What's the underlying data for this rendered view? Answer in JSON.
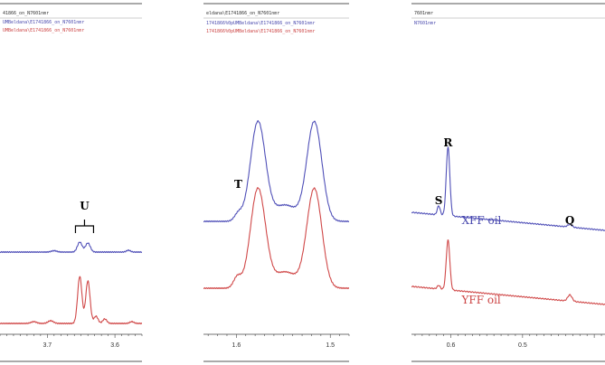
{
  "chart_data": [
    {
      "type": "line",
      "panel": "left",
      "headers": [
        "41866_on_N7601nmr",
        "UMBeldana\\E1741866_on_N7601nmr",
        "UMBeldana\\E1741866_on_N7601nmr"
      ],
      "xlim": [
        3.77,
        3.56
      ],
      "xticks": [
        {
          "value": 3.7,
          "label": "3.7"
        },
        {
          "value": 3.6,
          "label": "3.6"
        }
      ],
      "annotations": [
        {
          "text": "U",
          "x": 3.645
        }
      ],
      "series": [
        {
          "color": "#5050b8",
          "baseline": 279,
          "peaks": [
            {
              "x": 3.652,
              "h": 11,
              "w": 0.0035
            },
            {
              "x": 3.64,
              "h": 10,
              "w": 0.0035
            },
            {
              "x": 3.69,
              "h": 1.5,
              "w": 0.004
            },
            {
              "x": 3.58,
              "h": 2,
              "w": 0.003
            }
          ]
        },
        {
          "color": "#d04848",
          "baseline": 358,
          "peaks": [
            {
              "x": 3.652,
              "h": 52,
              "w": 0.0032
            },
            {
              "x": 3.64,
              "h": 47,
              "w": 0.0032
            },
            {
              "x": 3.628,
              "h": 8,
              "w": 0.003
            },
            {
              "x": 3.615,
              "h": 5,
              "w": 0.003
            },
            {
              "x": 3.695,
              "h": 3,
              "w": 0.004
            },
            {
              "x": 3.72,
              "h": 2,
              "w": 0.004
            },
            {
              "x": 3.575,
              "h": 2,
              "w": 0.003
            }
          ]
        }
      ]
    },
    {
      "type": "line",
      "panel": "middle",
      "headers": [
        "eldana\\E1741866_on_N7601nmr",
        "1741866%0pUMBeldana\\E1741866_on_N7601nmr",
        "1741866%0pUMBeldana\\E1741866_on_N7601nmr"
      ],
      "xlim": [
        1.635,
        1.48
      ],
      "xticks": [
        {
          "value": 1.6,
          "label": "1.6"
        },
        {
          "value": 1.5,
          "label": "1.5"
        }
      ],
      "annotations": [
        {
          "text": "T",
          "x": 1.598
        }
      ],
      "series": [
        {
          "color": "#5050b8",
          "baseline": 245,
          "peaks": [
            {
              "x": 1.577,
              "h": 110,
              "w": 0.008
            },
            {
              "x": 1.548,
              "h": 18,
              "w": 0.012
            },
            {
              "x": 1.517,
              "h": 110,
              "w": 0.008
            },
            {
              "x": 1.598,
              "h": 8,
              "w": 0.004
            }
          ]
        },
        {
          "color": "#d04848",
          "baseline": 319,
          "peaks": [
            {
              "x": 1.577,
              "h": 110,
              "w": 0.008
            },
            {
              "x": 1.548,
              "h": 18,
              "w": 0.012
            },
            {
              "x": 1.517,
              "h": 110,
              "w": 0.008
            },
            {
              "x": 1.599,
              "h": 12,
              "w": 0.004
            }
          ]
        }
      ]
    },
    {
      "type": "line",
      "panel": "right",
      "headers": [
        "7601nmr",
        "N7601nmr"
      ],
      "xlim": [
        0.655,
        0.385
      ],
      "xticks": [
        {
          "value": 0.6,
          "label": "0.6"
        },
        {
          "value": 0.5,
          "label": "0.5"
        }
      ],
      "annotations": [
        {
          "text": "S",
          "x": 0.617
        },
        {
          "text": "R",
          "x": 0.604
        },
        {
          "text": "Q",
          "x": 0.434
        }
      ],
      "series_labels": [
        {
          "text": "XFF oil",
          "color": "#4a4aae",
          "x": 0.585
        },
        {
          "text": "YFF oil",
          "color": "#cc4444",
          "x": 0.585
        }
      ],
      "series": [
        {
          "color": "#5050b8",
          "baseline": 245,
          "slope": 20,
          "peaks": [
            {
              "x": 0.604,
              "h": 76,
              "w": 0.0025
            },
            {
              "x": 0.617,
              "h": 10,
              "w": 0.002
            },
            {
              "x": 0.434,
              "h": 3,
              "w": 0.003
            }
          ]
        },
        {
          "color": "#d04848",
          "baseline": 327,
          "slope": 20,
          "peaks": [
            {
              "x": 0.604,
              "h": 55,
              "w": 0.0025
            },
            {
              "x": 0.617,
              "h": 4,
              "w": 0.002
            },
            {
              "x": 0.434,
              "h": 7,
              "w": 0.003
            }
          ]
        }
      ]
    }
  ]
}
